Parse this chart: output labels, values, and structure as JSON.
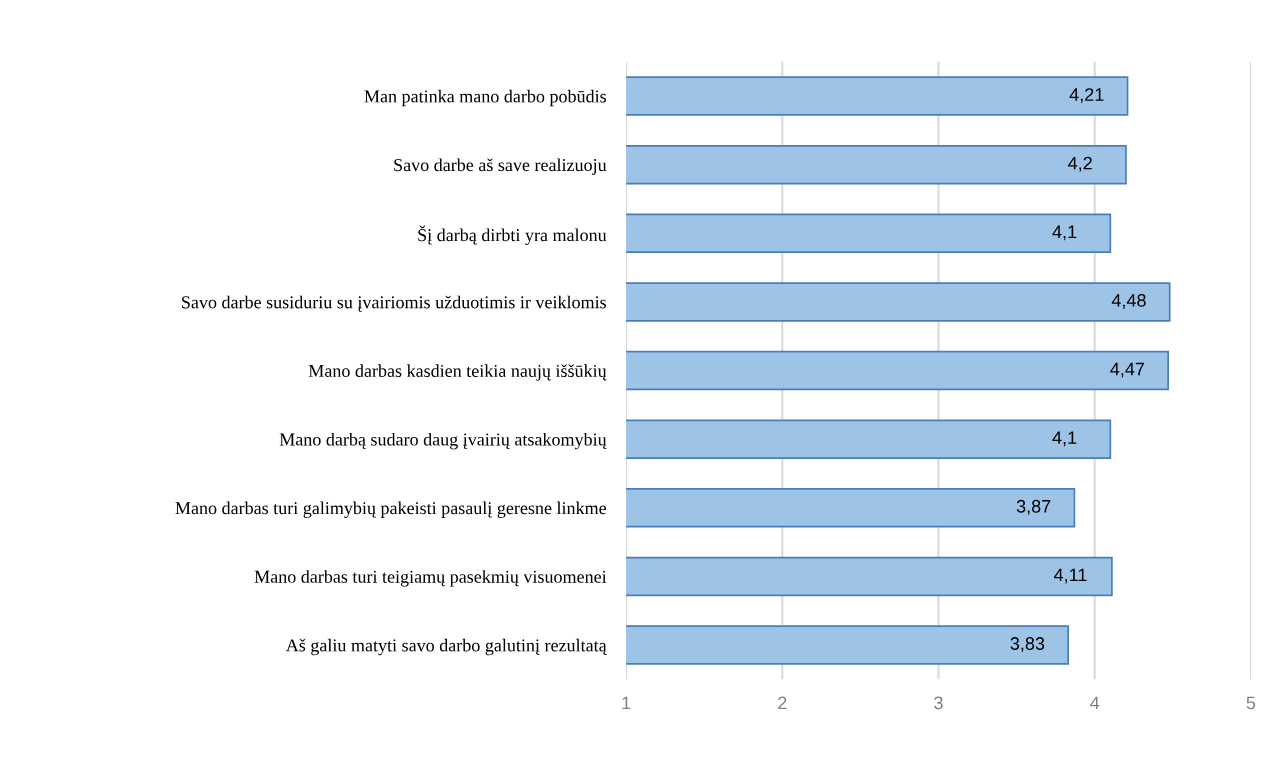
{
  "chart_data": {
    "type": "bar",
    "orientation": "horizontal",
    "categories": [
      "Man patinka mano darbo pobūdis",
      "Savo darbe aš save realizuoju",
      "Šį darbą dirbti yra malonu",
      "Savo darbe susiduriu su įvairiomis užduotimis ir veiklomis",
      "Mano darbas kasdien teikia naujų iššūkių",
      "Mano darbą sudaro daug įvairių atsakomybių",
      "Mano darbas turi galimybių pakeisti pasaulį geresne linkme",
      "Mano darbas turi teigiamų pasekmių visuomenei",
      "Aš galiu matyti savo darbo galutinį rezultatą"
    ],
    "values": [
      4.21,
      4.2,
      4.1,
      4.48,
      4.47,
      4.1,
      3.87,
      4.11,
      3.83
    ],
    "value_labels": [
      "4,21",
      "4,2",
      "4,1",
      "4,48",
      "4,47",
      "4,1",
      "3,87",
      "4,11",
      "3,83"
    ],
    "color": "#9dc3e6",
    "xlim": [
      1,
      5
    ],
    "xticks": [
      1,
      2,
      3,
      4,
      5
    ],
    "grid": "x",
    "legend": false
  }
}
